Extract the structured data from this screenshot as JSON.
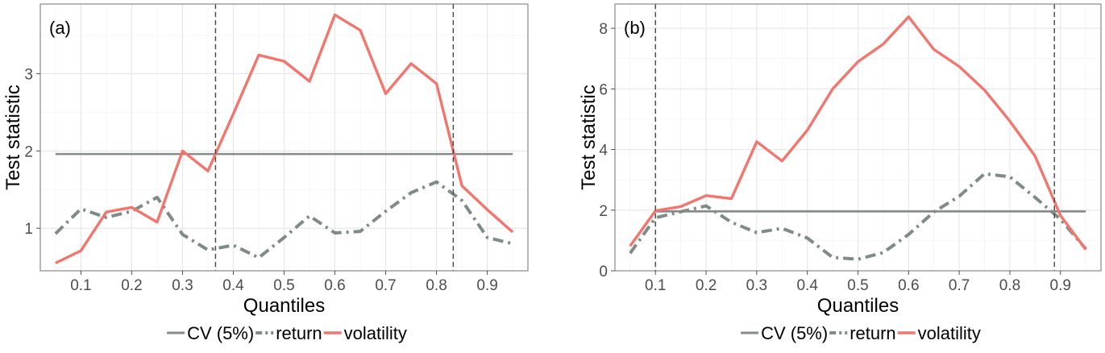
{
  "chart_data": [
    {
      "type": "line",
      "panel_label": "(a)",
      "title": "",
      "xlabel": "Quantiles",
      "ylabel": "Test statistic",
      "xlim": [
        0.02,
        0.98
      ],
      "ylim": [
        0.45,
        3.9
      ],
      "x_ticks": [
        0.1,
        0.2,
        0.3,
        0.4,
        0.5,
        0.6,
        0.7,
        0.8,
        0.9
      ],
      "x_tick_labels": [
        "0.1",
        "0.2",
        "0.3",
        "0.4",
        "0.5",
        "0.6",
        "0.7",
        "0.8",
        "0.9"
      ],
      "y_ticks": [
        1,
        2,
        3
      ],
      "y_tick_labels": [
        "1",
        "2",
        "3"
      ],
      "cv_value": 1.96,
      "cv_range": [
        0.05,
        0.95
      ],
      "vlines": [
        0.365,
        0.833
      ],
      "grid": true,
      "x": [
        0.05,
        0.1,
        0.15,
        0.2,
        0.25,
        0.3,
        0.35,
        0.4,
        0.45,
        0.5,
        0.55,
        0.6,
        0.65,
        0.7,
        0.75,
        0.8,
        0.85,
        0.9,
        0.95
      ],
      "series": [
        {
          "key": "return",
          "values": [
            0.93,
            1.25,
            1.14,
            1.22,
            1.4,
            0.92,
            0.72,
            0.78,
            0.62,
            0.88,
            1.16,
            0.94,
            0.96,
            1.22,
            1.46,
            1.6,
            1.36,
            0.88,
            0.8
          ]
        },
        {
          "key": "volatility",
          "values": [
            0.55,
            0.71,
            1.21,
            1.27,
            1.08,
            2.0,
            1.74,
            2.48,
            3.24,
            3.16,
            2.9,
            3.76,
            3.56,
            2.74,
            3.13,
            2.87,
            1.55,
            1.24,
            0.95
          ]
        }
      ]
    },
    {
      "type": "line",
      "panel_label": "(b)",
      "title": "",
      "xlabel": "Quantiles",
      "ylabel": "Test statistic",
      "xlim": [
        0.02,
        0.98
      ],
      "ylim": [
        0,
        8.8
      ],
      "x_ticks": [
        0.1,
        0.2,
        0.3,
        0.4,
        0.5,
        0.6,
        0.7,
        0.8,
        0.9
      ],
      "x_tick_labels": [
        "0.1",
        "0.2",
        "0.3",
        "0.4",
        "0.5",
        "0.6",
        "0.7",
        "0.8",
        "0.9"
      ],
      "y_ticks": [
        0,
        2,
        4,
        6,
        8
      ],
      "y_tick_labels": [
        "0",
        "2",
        "4",
        "6",
        "8"
      ],
      "cv_value": 1.96,
      "cv_range": [
        0.1,
        0.95
      ],
      "vlines": [
        0.1,
        0.888
      ],
      "grid": true,
      "x": [
        0.05,
        0.1,
        0.15,
        0.2,
        0.25,
        0.3,
        0.35,
        0.4,
        0.45,
        0.5,
        0.55,
        0.6,
        0.65,
        0.7,
        0.75,
        0.8,
        0.85,
        0.9,
        0.95
      ],
      "series": [
        {
          "key": "return",
          "values": [
            0.58,
            1.75,
            1.95,
            2.14,
            1.6,
            1.26,
            1.4,
            1.08,
            0.44,
            0.38,
            0.6,
            1.2,
            1.94,
            2.46,
            3.2,
            3.1,
            2.42,
            1.7,
            0.72
          ]
        },
        {
          "key": "volatility",
          "values": [
            0.82,
            1.98,
            2.12,
            2.48,
            2.38,
            4.26,
            3.62,
            4.64,
            6.0,
            6.9,
            7.48,
            8.38,
            7.3,
            6.74,
            5.96,
            4.94,
            3.78,
            1.82,
            0.7
          ]
        }
      ]
    }
  ],
  "legend": {
    "items": [
      {
        "key": "cv",
        "label": "CV (5%)"
      },
      {
        "key": "return",
        "label": "return"
      },
      {
        "key": "volatility",
        "label": "volatility"
      }
    ],
    "position": "bottom"
  },
  "colors": {
    "cv": "#858b8a",
    "return": "#7f8b87",
    "volatility": "#f2766d",
    "vline": "#444444"
  }
}
